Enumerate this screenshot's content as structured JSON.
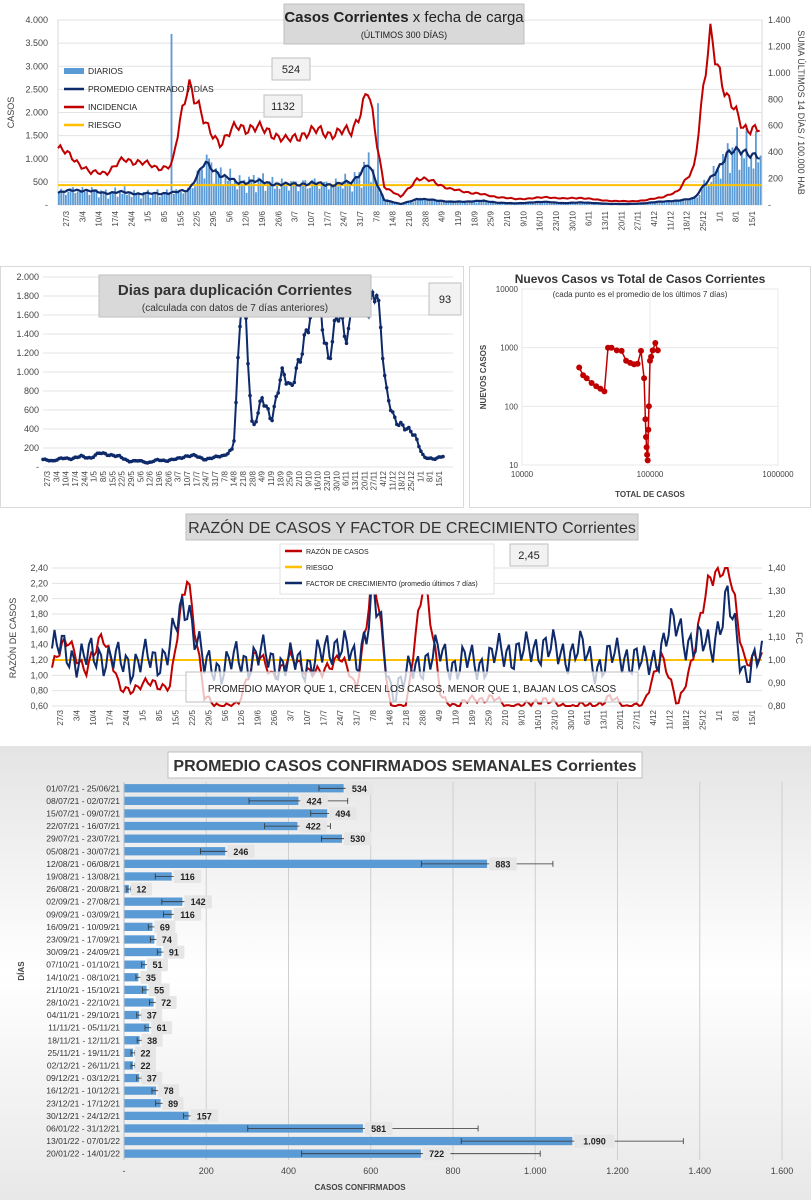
{
  "colors": {
    "diarios": "#5b9bd5",
    "promedio": "#0e2a6b",
    "incidencia": "#c00000",
    "riesgo": "#ffc000",
    "scatter": "#c00000"
  },
  "chart_data": [
    {
      "id": "casos",
      "type": "bar+line",
      "title": "Casos Corrientes",
      "title_suffix": "x fecha de carga",
      "subtitle": "(ÚLTIMOS 300 DÍAS)",
      "ylabel": "CASOS",
      "y2label": "SUMA ÚLTIMOS 14 DÍAS / 100.000 HAB",
      "ylim": [
        0,
        4000
      ],
      "y2lim": [
        0,
        1400
      ],
      "yticks": [
        "-",
        "500",
        "1.000",
        "1.500",
        "2.000",
        "2.500",
        "3.000",
        "3.500",
        "4.000"
      ],
      "y2ticks": [
        "-",
        "200",
        "400",
        "600",
        "800",
        "1.000",
        "1.200",
        "1.400"
      ],
      "xticks": [
        "27/3",
        "3/4",
        "10/4",
        "17/4",
        "24/4",
        "1/5",
        "8/5",
        "15/5",
        "22/5",
        "29/5",
        "5/6",
        "12/6",
        "19/6",
        "26/6",
        "3/7",
        "10/7",
        "17/7",
        "24/7",
        "31/7",
        "7/8",
        "14/8",
        "21/8",
        "28/8",
        "4/9",
        "11/9",
        "18/9",
        "25/9",
        "2/10",
        "9/10",
        "16/10",
        "23/10",
        "30/10",
        "6/11",
        "13/11",
        "20/11",
        "27/11",
        "4/12",
        "11/12",
        "18/12",
        "25/12",
        "1/1",
        "8/1",
        "15/1"
      ],
      "legend": [
        "DIARIOS",
        "PROMEDIO CENTRADO 7 DÍAS",
        "INCIDENCIA",
        "RIESGO"
      ],
      "annotations": [
        "524",
        "1132"
      ],
      "riesgo_value": 150,
      "promedio_weekly": [
        260,
        330,
        300,
        260,
        280,
        240,
        250,
        260,
        330,
        900,
        650,
        480,
        520,
        470,
        440,
        460,
        460,
        440,
        500,
        880,
        110,
        20,
        130,
        110,
        70,
        74,
        90,
        50,
        35,
        55,
        70,
        37,
        60,
        38,
        22,
        22,
        37,
        78,
        90,
        157,
        580,
        1090,
        1200,
        1000
      ],
      "incidencia_weekly": [
        430,
        350,
        240,
        250,
        340,
        330,
        280,
        300,
        960,
        600,
        470,
        600,
        580,
        560,
        480,
        540,
        560,
        540,
        560,
        860,
        140,
        60,
        200,
        180,
        120,
        100,
        80,
        60,
        45,
        50,
        60,
        48,
        55,
        40,
        30,
        28,
        35,
        60,
        100,
        300,
        1300,
        800,
        600,
        560
      ]
    },
    {
      "id": "duplicacion",
      "type": "line",
      "title": "Dias para duplicación Corrientes",
      "subtitle": "(calculada con datos de 7 días anteriores)",
      "annotation": "93",
      "ylim": [
        0,
        2000
      ],
      "yticks": [
        "-",
        "200",
        "400",
        "600",
        "800",
        "1.000",
        "1.200",
        "1.400",
        "1.600",
        "1.800",
        "2.000"
      ],
      "xticks": [
        "27/3",
        "3/4",
        "10/4",
        "17/4",
        "24/4",
        "1/5",
        "8/5",
        "15/5",
        "22/5",
        "29/5",
        "5/6",
        "12/6",
        "19/6",
        "26/6",
        "3/7",
        "10/7",
        "17/7",
        "24/7",
        "31/7",
        "7/8",
        "14/8",
        "21/8",
        "28/8",
        "4/9",
        "11/9",
        "18/9",
        "25/9",
        "2/10",
        "9/10",
        "16/10",
        "23/10",
        "30/10",
        "6/11",
        "13/11",
        "20/11",
        "27/11",
        "4/12",
        "11/12",
        "18/12",
        "25/12",
        "1/1",
        "8/1",
        "15/1"
      ],
      "values": [
        80,
        60,
        100,
        80,
        120,
        90,
        150,
        130,
        110,
        60,
        70,
        40,
        80,
        60,
        90,
        110,
        120,
        80,
        100,
        120,
        200,
        2000,
        400,
        700,
        500,
        1000,
        800,
        1200,
        1500,
        1800,
        1100,
        1600,
        1400,
        2000,
        1700,
        1900,
        800,
        500,
        400,
        350,
        100,
        80,
        120
      ]
    },
    {
      "id": "nuevos_vs_total",
      "type": "scatter",
      "title": "Nuevos Casos vs Total de Casos Corrientes",
      "subtitle": "(cada punto es el promedio de los últimos 7 días)",
      "xlabel": "TOTAL DE CASOS",
      "ylabel": "NUEVOS CASOS",
      "xscale": "log",
      "yscale": "log",
      "xlim": [
        10000,
        1000000
      ],
      "ylim": [
        10,
        10000
      ],
      "xticks": [
        "10000",
        "100000",
        "1000000"
      ],
      "yticks": [
        "10",
        "100",
        "1000",
        "10000"
      ],
      "x": [
        28000,
        30000,
        32000,
        35000,
        38000,
        41000,
        44000,
        47000,
        50000,
        55000,
        60000,
        65000,
        70000,
        75000,
        80000,
        85000,
        90000,
        92000,
        93000,
        94000,
        95000,
        96000,
        97000,
        98000,
        100000,
        102000,
        105000,
        110000,
        115000
      ],
      "y": [
        460,
        340,
        300,
        250,
        220,
        200,
        180,
        1000,
        1000,
        900,
        880,
        600,
        550,
        520,
        530,
        880,
        300,
        60,
        30,
        20,
        15,
        12,
        40,
        100,
        600,
        700,
        900,
        1200,
        900
      ]
    },
    {
      "id": "razon",
      "type": "line",
      "title": "RAZÓN DE CASOS Y FACTOR DE CRECIMIENTO Corrientes",
      "ylabel": "RAZÓN DE CASOS",
      "y2label": "FC",
      "annotation": "2,45",
      "note": "PROMEDIO MAYOR QUE 1, CRECEN LOS CASOS, MENOR QUE 1, BAJAN LOS CASOS",
      "legend": [
        "RAZÓN DE CASOS",
        "RIESGO",
        "FACTOR DE CRECIMIENTO (promedio últimos 7 días)"
      ],
      "ylim": [
        0.6,
        2.4
      ],
      "y2lim": [
        0.8,
        1.4
      ],
      "yticks": [
        "0,60",
        "0,80",
        "1,00",
        "1,20",
        "1,40",
        "1,60",
        "1,80",
        "2,00",
        "2,20",
        "2,40"
      ],
      "y2ticks": [
        "0,80",
        "0,90",
        "1,00",
        "1,10",
        "1,20",
        "1,30",
        "1,40"
      ],
      "xticks": [
        "27/3",
        "3/4",
        "10/4",
        "17/4",
        "24/4",
        "1/5",
        "8/5",
        "15/5",
        "22/5",
        "29/5",
        "5/6",
        "12/6",
        "19/6",
        "26/6",
        "3/7",
        "10/7",
        "17/7",
        "24/7",
        "31/7",
        "7/8",
        "14/8",
        "21/8",
        "28/8",
        "4/9",
        "11/9",
        "18/9",
        "25/9",
        "2/10",
        "9/10",
        "16/10",
        "23/10",
        "30/10",
        "6/11",
        "13/11",
        "20/11",
        "27/11",
        "4/12",
        "11/12",
        "18/12",
        "25/12",
        "1/1",
        "8/1",
        "15/1"
      ],
      "riesgo_value": 1.2,
      "razon_weekly": [
        1.1,
        1.5,
        1.0,
        1.6,
        0.8,
        0.85,
        0.9,
        0.85,
        2.4,
        0.7,
        0.6,
        0.6,
        1.3,
        1.0,
        1.2,
        1.1,
        1.0,
        1.3,
        0.8,
        2.4,
        0.6,
        0.6,
        2.4,
        0.7,
        0.6,
        0.7,
        0.7,
        0.6,
        0.6,
        0.7,
        0.6,
        0.6,
        0.6,
        0.7,
        0.6,
        0.6,
        1.3,
        0.6,
        1.3,
        2.4,
        2.4,
        1.2,
        1.2
      ],
      "fc_weekly": [
        1.05,
        1.03,
        1.0,
        1.03,
        0.98,
        1.0,
        0.99,
        1.06,
        1.27,
        0.96,
        0.98,
        0.99,
        1.02,
        1.0,
        0.98,
        0.99,
        1.01,
        1.1,
        0.96,
        1.3,
        0.88,
        0.92,
        1.01,
        1.02,
        0.98,
        0.99,
        1.0,
        1.05,
        1.02,
        1.08,
        1.01,
        1.06,
        0.98,
        1.0,
        1.03,
        0.97,
        1.05,
        1.16,
        1.05,
        1.08,
        1.24,
        0.95,
        1.0
      ]
    },
    {
      "id": "promedio_semanal",
      "type": "bar",
      "orientation": "horizontal",
      "title": "PROMEDIO CASOS CONFIRMADOS SEMANALES Corrientes",
      "xlabel": "CASOS CONFIRMADOS",
      "ylabel": "DÍAS",
      "xlim": [
        0,
        1600
      ],
      "xticks": [
        "-",
        "200",
        "400",
        "600",
        "800",
        "1.000",
        "1.200",
        "1.400",
        "1.600"
      ],
      "categories": [
        "01/07/21 - 25/06/21",
        "08/07/21 - 02/07/21",
        "15/07/21 - 09/07/21",
        "22/07/21 - 16/07/21",
        "29/07/21 - 23/07/21",
        "05/08/21 - 30/07/21",
        "12/08/21 - 06/08/21",
        "19/08/21 - 13/08/21",
        "26/08/21 - 20/08/21",
        "02/09/21 - 27/08/21",
        "09/09/21 - 03/09/21",
        "16/09/21 - 10/09/21",
        "23/09/21 - 17/09/21",
        "30/09/21 - 24/09/21",
        "07/10/21 - 01/10/21",
        "14/10/21 - 08/10/21",
        "21/10/21 - 15/10/21",
        "28/10/21 - 22/10/21",
        "04/11/21 - 29/10/21",
        "11/11/21 - 05/11/21",
        "18/11/21 - 12/11/21",
        "25/11/21 - 19/11/21",
        "02/12/21 - 26/11/21",
        "09/12/21 - 03/12/21",
        "16/12/21 - 10/12/21",
        "23/12/21 - 17/12/21",
        "30/12/21 - 24/12/21",
        "06/01/22 - 31/12/21",
        "13/01/22 - 07/01/22",
        "20/01/22 - 14/01/22"
      ],
      "values": [
        534,
        424,
        494,
        422,
        530,
        246,
        883,
        116,
        12,
        142,
        116,
        69,
        74,
        91,
        51,
        35,
        55,
        72,
        37,
        61,
        38,
        22,
        22,
        37,
        78,
        89,
        157,
        581,
        1090,
        722
      ],
      "labels": [
        "534",
        "424",
        "494",
        "422",
        "530",
        "246",
        "883",
        "116",
        "12",
        "142",
        "116",
        "69",
        "74",
        "91",
        "51",
        "35",
        "55",
        "72",
        "37",
        "61",
        "38",
        "22",
        "22",
        "37",
        "78",
        "89",
        "157",
        "581",
        "1.090",
        "722"
      ],
      "errors": [
        60,
        120,
        40,
        80,
        50,
        60,
        160,
        40,
        5,
        50,
        20,
        10,
        10,
        10,
        8,
        6,
        10,
        10,
        6,
        10,
        6,
        5,
        5,
        6,
        10,
        12,
        12,
        280,
        270,
        290
      ]
    }
  ]
}
